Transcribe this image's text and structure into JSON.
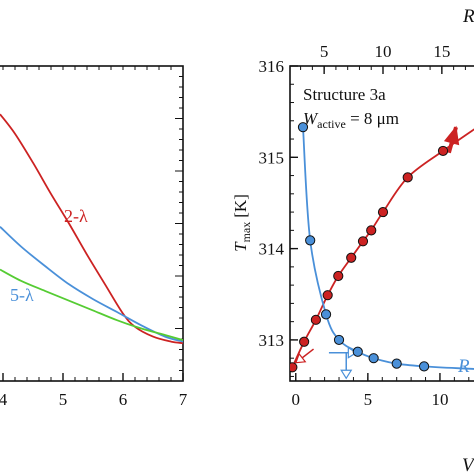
{
  "chart_data": [
    {
      "type": "line",
      "x_ticks": [
        "4",
        "5",
        "6",
        "7"
      ],
      "xlim": [
        3.95,
        7
      ],
      "ylim": [
        0,
        1
      ],
      "colors": {
        "2-λ": "#cc2222",
        "5-λ": "#4a90d9",
        "third": "#55cc33"
      },
      "series": [
        {
          "name": "2-λ",
          "x": [
            3.95,
            4.2,
            4.5,
            4.8,
            5.1,
            5.4,
            5.7,
            6.0,
            6.2,
            6.5,
            6.8,
            7.0
          ],
          "y": [
            0.847,
            0.785,
            0.693,
            0.594,
            0.5,
            0.401,
            0.307,
            0.214,
            0.172,
            0.141,
            0.125,
            0.12
          ]
        },
        {
          "name": "5-λ",
          "x": [
            3.95,
            4.3,
            4.7,
            5.1,
            5.5,
            5.9,
            6.3,
            6.7,
            7.0
          ],
          "y": [
            0.49,
            0.427,
            0.365,
            0.307,
            0.26,
            0.219,
            0.177,
            0.141,
            0.125
          ]
        },
        {
          "name": "",
          "x": [
            3.95,
            4.3,
            4.7,
            5.1,
            5.5,
            5.9,
            6.3,
            6.7,
            7.0
          ],
          "y": [
            0.354,
            0.318,
            0.286,
            0.255,
            0.224,
            0.193,
            0.167,
            0.146,
            0.13
          ]
        }
      ],
      "labels": [
        {
          "text": "2-λ",
          "series": "2-λ"
        },
        {
          "text": "5-λ",
          "series": "5-λ"
        }
      ]
    },
    {
      "type": "scatter",
      "ylabel_main": "T",
      "ylabel_sub": "max",
      "ylabel_unit": "[K]",
      "annotation_line1": "Structure 3a",
      "annotation_line2_main": "W",
      "annotation_line2_sub": "active",
      "annotation_line2_rest": " = 8 μm",
      "xlim": [
        -0.4,
        12.5
      ],
      "ylim": [
        312.55,
        316.0
      ],
      "x_ticks": [
        "0",
        "5",
        "10"
      ],
      "y_ticks": [
        "313",
        "314",
        "315",
        "316"
      ],
      "top_xlim": [
        2.1,
        17.9
      ],
      "top_ticks": [
        "5",
        "10",
        "15"
      ],
      "top_label_fragment": "R",
      "bottom_label_fragment": "V",
      "curve_label_fragment": "R",
      "colors": {
        "red": "#cc2222",
        "blue": "#4a90d9"
      },
      "series": [
        {
          "name": "",
          "axis": "top",
          "x": [
            2.3,
            3.3,
            4.3,
            5.3,
            6.2,
            7.3,
            8.3,
            9.0,
            10.0,
            12.1,
            15.1
          ],
          "y": [
            312.7,
            312.98,
            313.22,
            313.49,
            313.7,
            313.9,
            314.08,
            314.2,
            314.4,
            314.78,
            315.07
          ]
        },
        {
          "name": "",
          "axis": "bottom",
          "x": [
            0.5,
            1.0,
            2.1,
            3.0,
            4.3,
            5.4,
            7.0,
            8.9
          ],
          "y": [
            315.33,
            314.09,
            313.28,
            313.0,
            312.87,
            312.8,
            312.74,
            312.71
          ]
        }
      ]
    }
  ]
}
